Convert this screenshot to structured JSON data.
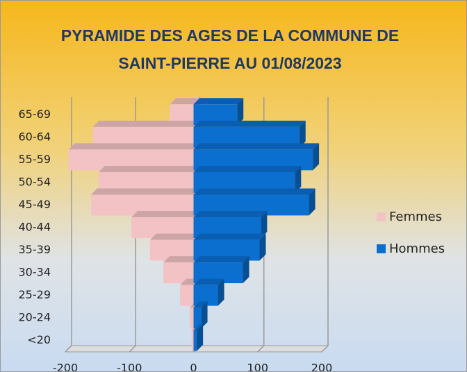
{
  "chart_data": {
    "type": "pyramid",
    "title": "PYRAMIDE DES AGES DE LA COMMUNE DE SAINT-PIERRE AU 01/08/2023",
    "categories": [
      "65-69",
      "60-64",
      "55-59",
      "50-54",
      "45-49",
      "40-44",
      "35-39",
      "30-34",
      "25-29",
      "20-24",
      "<20"
    ],
    "series": [
      {
        "name": "Femmes",
        "color": "#f2c2c5",
        "values": [
          -37,
          -157,
          -195,
          -148,
          -160,
          -97,
          -68,
          -47,
          -21,
          -6,
          -3
        ]
      },
      {
        "name": "Hommes",
        "color": "#0b6fd0",
        "values": [
          68,
          165,
          186,
          158,
          180,
          105,
          103,
          77,
          38,
          12,
          5
        ]
      }
    ],
    "xlim": [
      -200,
      200
    ],
    "xticks": [
      -200,
      -100,
      0,
      100,
      200
    ],
    "grid": true,
    "legend": "right"
  }
}
